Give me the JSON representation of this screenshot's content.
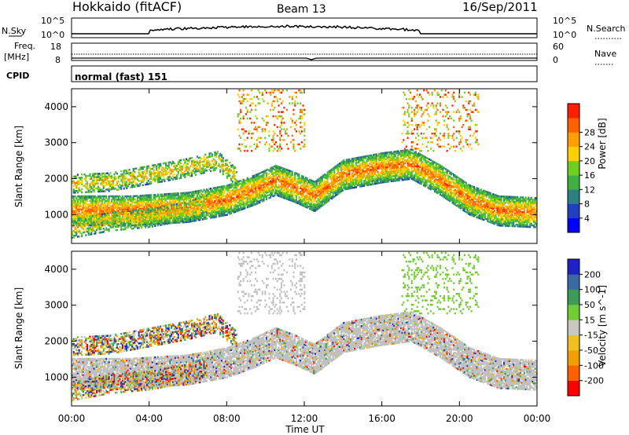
{
  "header": {
    "station": "Hokkaido (fitACF)",
    "beam": "Beam 13",
    "date": "16/Sep/2011"
  },
  "side_labels": {
    "nsky": "N.Sky",
    "freq_line1": "Freq.",
    "freq_line2": "[MHz]",
    "cpid": "CPID",
    "nsearch": "N.Search",
    "nave": "Nave",
    "nsky_tick_top": "10^5",
    "nsky_tick_bottom": "10^0",
    "freq_tick_top": "18",
    "freq_tick_bottom": "8",
    "nave_tick_top": "60",
    "nave_tick_bottom": "0"
  },
  "cpid_text": "normal (fast) 151",
  "colors": {
    "power_scale": [
      "#0000ff",
      "#2040c0",
      "#2e7f7f",
      "#40b040",
      "#6fcf20",
      "#ffd000",
      "#ffa000",
      "#ff6000",
      "#ff1e00"
    ],
    "velocity_scale": [
      "#2020c8",
      "#3a6aa0",
      "#3c9a5a",
      "#70cc30",
      "#c8c8c0",
      "#f0c020",
      "#f0a000",
      "#ff6000",
      "#ff0000"
    ],
    "ground_scatter": "#c0c0c0"
  },
  "chart_data": [
    {
      "type": "heatmap",
      "panel": "power",
      "ylabel": "Slant Range [km]",
      "yticks": [
        "1000",
        "2000",
        "3000",
        "4000"
      ],
      "ylim": [
        200,
        4500
      ],
      "xlim": [
        "00:00",
        "24:00"
      ],
      "colorbar_label": "Power [dB]",
      "colorbar_ticks": [
        "4",
        "8",
        "12",
        "16",
        "20",
        "24",
        "28"
      ],
      "bands": [
        {
          "name": "main-band",
          "points": [
            [
              0,
              1100
            ],
            [
              3,
              1100
            ],
            [
              6,
              1200
            ],
            [
              8,
              1400
            ],
            [
              9.5,
              1700
            ],
            [
              10.5,
              1950
            ],
            [
              11.5,
              1750
            ],
            [
              12.5,
              1500
            ],
            [
              14,
              2100
            ],
            [
              16,
              2300
            ],
            [
              17.5,
              2400
            ],
            [
              19,
              1950
            ],
            [
              20.5,
              1400
            ],
            [
              22,
              1100
            ],
            [
              24,
              1050
            ]
          ]
        },
        {
          "name": "upper-band",
          "points": [
            [
              0,
              1850
            ],
            [
              2,
              1900
            ],
            [
              4,
              2100
            ],
            [
              6,
              2300
            ],
            [
              7.5,
              2500
            ],
            [
              8.5,
              2000
            ]
          ]
        },
        {
          "name": "lower-band",
          "points": [
            [
              0,
              600
            ],
            [
              2,
              800
            ],
            [
              4,
              900
            ],
            [
              6,
              1100
            ],
            [
              7,
              1300
            ]
          ]
        }
      ]
    },
    {
      "type": "heatmap",
      "panel": "velocity",
      "ylabel": "Slant Range [km]",
      "yticks": [
        "1000",
        "2000",
        "3000",
        "4000"
      ],
      "ylim": [
        200,
        4500
      ],
      "xlabel": "Time UT",
      "xticks": [
        "00:00",
        "04:00",
        "08:00",
        "12:00",
        "16:00",
        "20:00",
        "00:00"
      ],
      "colorbar_label": "Velocity [m s^-1]",
      "colorbar_ticks": [
        "200",
        "100",
        "50",
        "15",
        "-15",
        "-50",
        "-100",
        "-200"
      ]
    }
  ]
}
